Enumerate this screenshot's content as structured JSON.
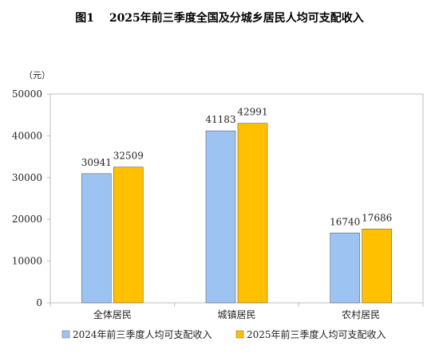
{
  "figure": {
    "label": "图1",
    "title": "2025年前三季度全国及分城乡居民人均可支配收入"
  },
  "chart_data": {
    "type": "bar",
    "title": "2025年前三季度全国及分城乡居民人均可支配收入",
    "ylabel": "（元）",
    "xlabel": "",
    "categories": [
      "全体居民",
      "城镇居民",
      "农村居民"
    ],
    "series": [
      {
        "name": "2024年前三季度人均可支配收入",
        "values": [
          30941,
          41183,
          16740
        ],
        "color": "#9DC3F2"
      },
      {
        "name": "2025年前三季度人均可支配收入",
        "values": [
          32509,
          42991,
          17686
        ],
        "color": "#FFC000"
      }
    ],
    "ylim": [
      0,
      50000
    ],
    "yticks": [
      0,
      10000,
      20000,
      30000,
      40000,
      50000
    ],
    "grid": false,
    "legend": "bottom",
    "data_labels": true
  }
}
